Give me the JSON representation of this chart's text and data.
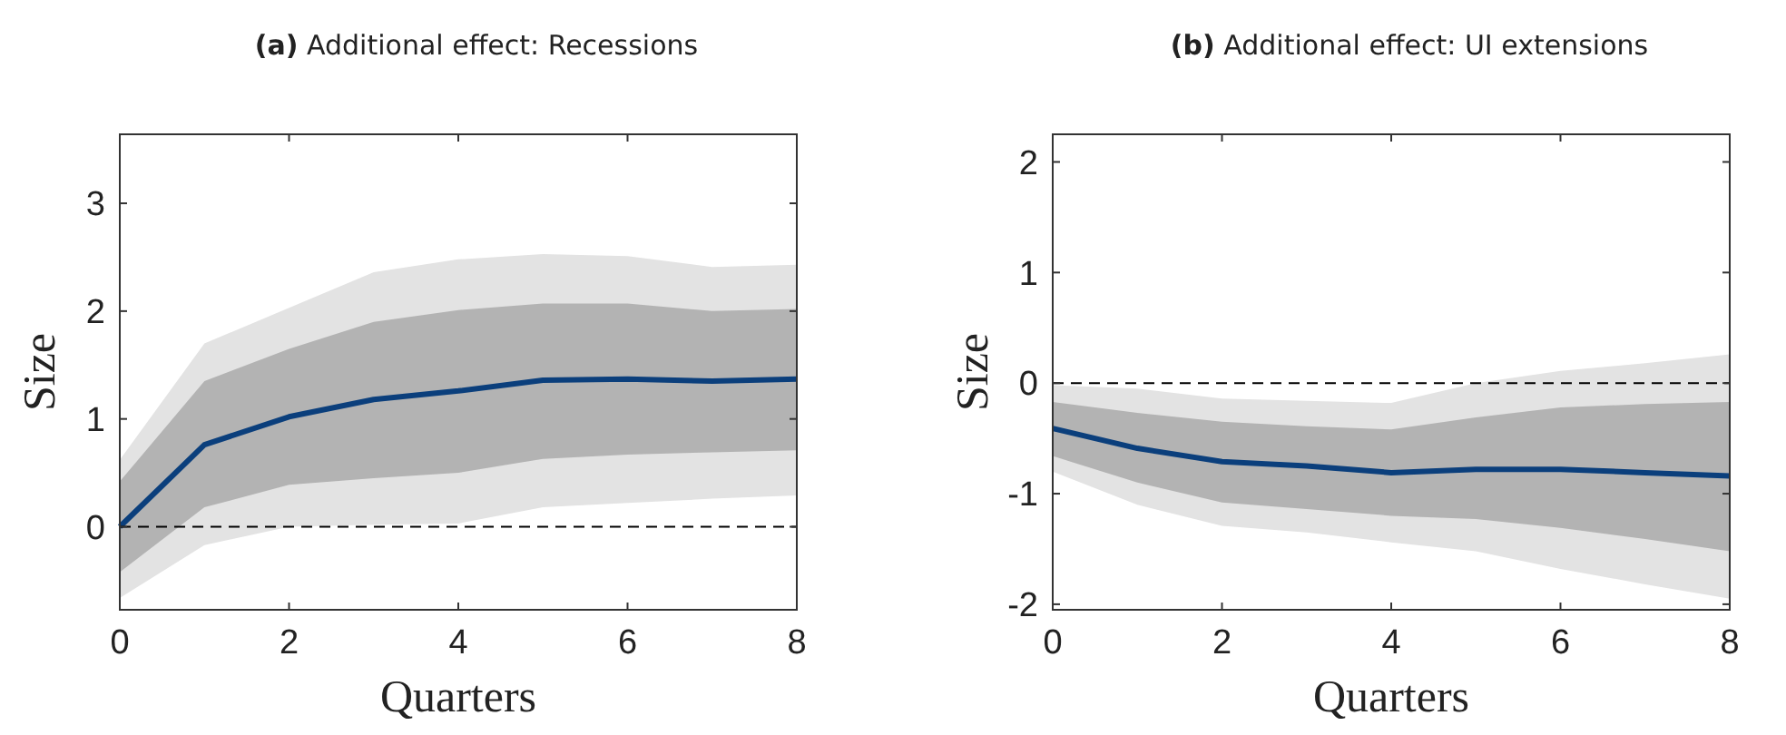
{
  "chart_data": [
    {
      "type": "line",
      "title": "(a) Additional effect: Recessions",
      "xlabel": "Quarters",
      "ylabel": "Size",
      "x": [
        0,
        1,
        2,
        3,
        4,
        5,
        6,
        7,
        8
      ],
      "xlim": [
        0,
        8
      ],
      "xticks": [
        0,
        2,
        4,
        6,
        8
      ],
      "ylim": [
        -0.77,
        3.64
      ],
      "yticks": [
        0,
        1,
        2,
        3
      ],
      "series": [
        {
          "color": "#e3e3e3",
          "values": [
            null,
            null,
            null,
            null,
            null,
            null,
            null,
            null,
            null
          ],
          "upper": [
            0.62,
            1.7,
            2.03,
            2.36,
            2.48,
            2.53,
            2.51,
            2.41,
            2.43
          ],
          "lower": [
            -0.66,
            -0.17,
            0.0,
            0.02,
            0.03,
            0.18,
            0.22,
            0.26,
            0.29
          ]
        },
        {
          "color": "#b3b3b3",
          "values": [
            null,
            null,
            null,
            null,
            null,
            null,
            null,
            null,
            null
          ],
          "upper": [
            0.42,
            1.35,
            1.65,
            1.9,
            2.01,
            2.07,
            2.07,
            2.0,
            2.02
          ],
          "lower": [
            -0.42,
            0.18,
            0.39,
            0.45,
            0.5,
            0.63,
            0.67,
            0.69,
            0.71
          ]
        },
        {
          "color": "#0b3f7c",
          "values": [
            0,
            0.76,
            1.02,
            1.18,
            1.26,
            1.36,
            1.37,
            1.35,
            1.37
          ]
        }
      ],
      "ref_lines": [
        {
          "axis": "y",
          "value": 0,
          "color": "#000000",
          "line_style": "dashed"
        }
      ]
    },
    {
      "type": "line",
      "title": "(b) Additional effect: UI extensions",
      "xlabel": "Quarters",
      "ylabel": "Size",
      "x": [
        0,
        1,
        2,
        3,
        4,
        5,
        6,
        7,
        8
      ],
      "xlim": [
        0,
        8
      ],
      "xticks": [
        0,
        2,
        4,
        6,
        8
      ],
      "ylim": [
        -2.05,
        2.25
      ],
      "yticks": [
        -2,
        -1,
        0,
        1,
        2
      ],
      "series": [
        {
          "color": "#e3e3e3",
          "values": [
            null,
            null,
            null,
            null,
            null,
            null,
            null,
            null,
            null
          ],
          "upper": [
            -0.02,
            -0.05,
            -0.14,
            -0.16,
            -0.18,
            0.0,
            0.11,
            0.18,
            0.26
          ],
          "lower": [
            -0.8,
            -1.1,
            -1.29,
            -1.35,
            -1.44,
            -1.52,
            -1.68,
            -1.82,
            -1.95
          ]
        },
        {
          "color": "#b3b3b3",
          "values": [
            null,
            null,
            null,
            null,
            null,
            null,
            null,
            null,
            null
          ],
          "upper": [
            -0.17,
            -0.27,
            -0.35,
            -0.39,
            -0.42,
            -0.31,
            -0.22,
            -0.19,
            -0.17
          ],
          "lower": [
            -0.66,
            -0.9,
            -1.08,
            -1.14,
            -1.2,
            -1.23,
            -1.31,
            -1.41,
            -1.52
          ]
        },
        {
          "color": "#0b3f7c",
          "values": [
            -0.41,
            -0.59,
            -0.71,
            -0.75,
            -0.81,
            -0.78,
            -0.78,
            -0.81,
            -0.84
          ]
        }
      ],
      "ref_lines": [
        {
          "axis": "y",
          "value": 0,
          "color": "#000000",
          "line_style": "dashed"
        }
      ]
    }
  ]
}
